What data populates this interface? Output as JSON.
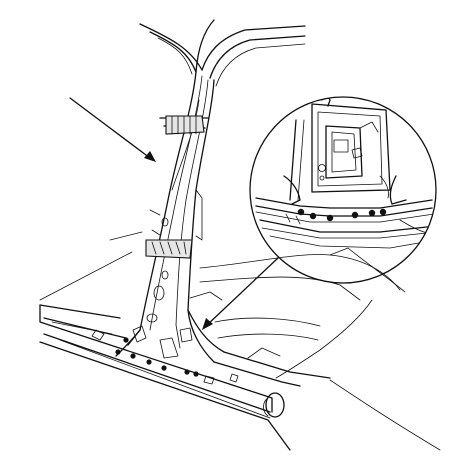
{
  "figure": {
    "subject": "center-pillar-and-side-sill-with-spot-weld-points",
    "line_color": "#111111",
    "background_color": "#ffffff",
    "detail_callout": "magnified-view-of-pillar-base-weld-seam",
    "icons": [
      "leader-arrow-icon",
      "spot-weld-dot-icon",
      "masking-tape-icon"
    ]
  }
}
